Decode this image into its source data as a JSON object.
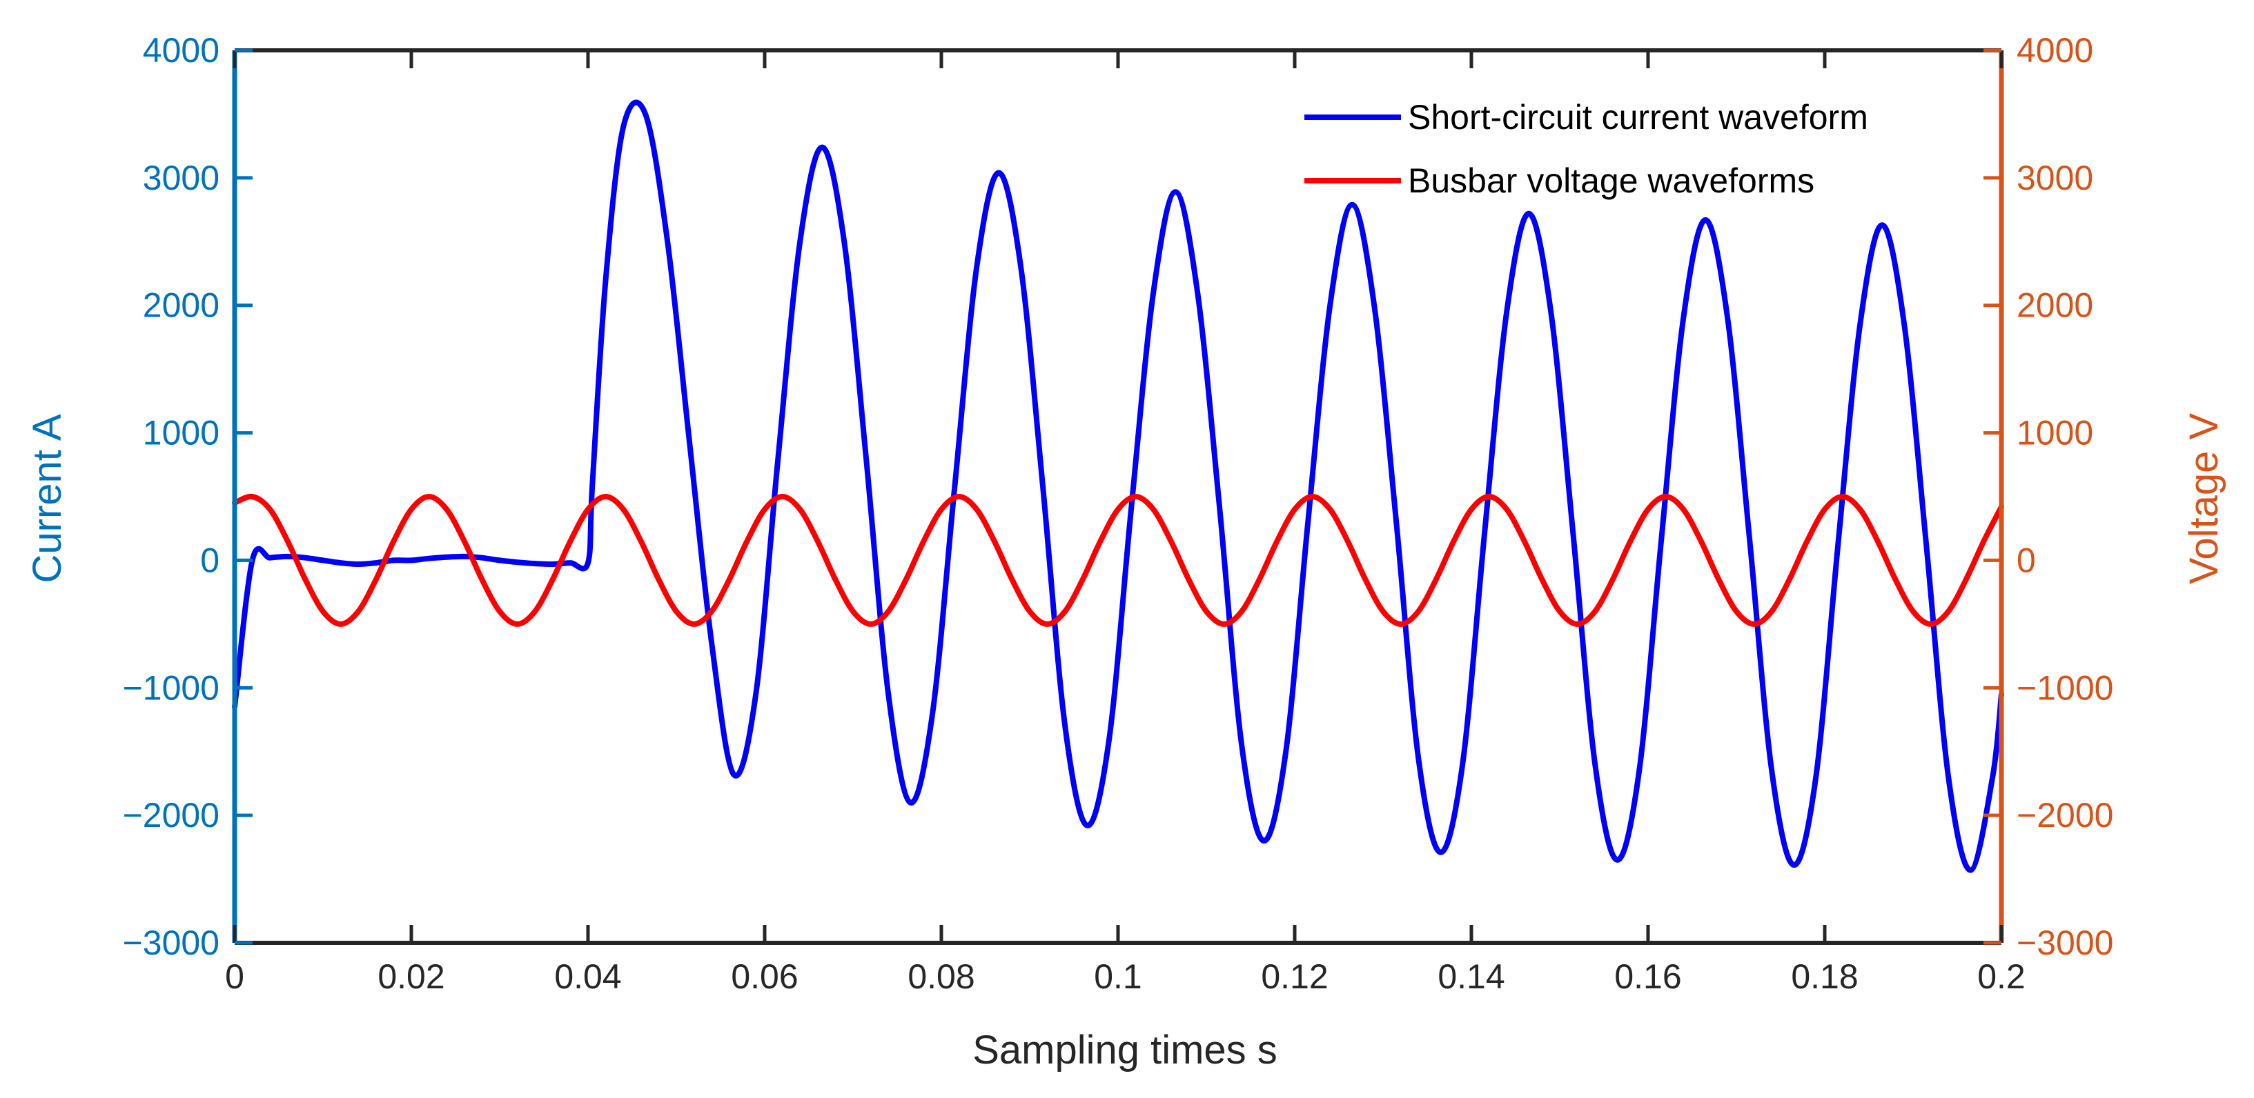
{
  "chart_data": {
    "type": "line",
    "title": "",
    "xlabel": "Sampling times s",
    "ylabel_left": "Current A",
    "ylabel_right": "Voltage V",
    "xlim": [
      0,
      0.2
    ],
    "ylim_left": [
      -3000,
      4000
    ],
    "ylim_right": [
      -3000,
      4000
    ],
    "x_ticks": [
      "0",
      "0.02",
      "0.04",
      "0.06",
      "0.08",
      "0.1",
      "0.12",
      "0.14",
      "0.16",
      "0.18",
      "0.2"
    ],
    "y_ticks_left": [
      "−3000",
      "−2000",
      "−1000",
      "0",
      "1000",
      "2000",
      "3000",
      "4000"
    ],
    "y_ticks_right": [
      "−3000",
      "−2000",
      "−1000",
      "0",
      "1000",
      "2000",
      "3000",
      "4000"
    ],
    "grid": false,
    "legend_placement": "top-right",
    "colors": {
      "current": "#0000ff",
      "voltage": "#ff0000",
      "left_axis": "#0072bd",
      "right_axis": "#d95319",
      "frame": "#262626",
      "text": "#262626"
    },
    "series": [
      {
        "name": "Short-circuit current waveform",
        "axis": "left",
        "color": "#0000ff",
        "x": [
          0,
          0.002,
          0.004,
          0.006,
          0.008,
          0.01,
          0.012,
          0.014,
          0.016,
          0.018,
          0.02,
          0.022,
          0.024,
          0.026,
          0.028,
          0.03,
          0.032,
          0.034,
          0.036,
          0.038,
          0.04,
          0.0405,
          0.042,
          0.044,
          0.0465,
          0.049,
          0.0515,
          0.054,
          0.0565,
          0.059,
          0.0615,
          0.064,
          0.0665,
          0.069,
          0.0715,
          0.074,
          0.0765,
          0.079,
          0.0815,
          0.084,
          0.0865,
          0.089,
          0.0915,
          0.094,
          0.0965,
          0.099,
          0.1015,
          0.104,
          0.1065,
          0.109,
          0.1115,
          0.114,
          0.1165,
          0.119,
          0.1215,
          0.124,
          0.1265,
          0.129,
          0.1315,
          0.134,
          0.1365,
          0.139,
          0.1415,
          0.144,
          0.1465,
          0.149,
          0.1515,
          0.154,
          0.1565,
          0.159,
          0.1615,
          0.164,
          0.1665,
          0.169,
          0.1715,
          0.174,
          0.1765,
          0.179,
          0.1815,
          0.184,
          0.1865,
          0.189,
          0.1915,
          0.194,
          0.1965,
          0.199,
          0.2
        ],
        "y": [
          -1150,
          0,
          20,
          30,
          20,
          0,
          -20,
          -30,
          -20,
          0,
          0,
          15,
          25,
          30,
          20,
          0,
          -15,
          -25,
          -30,
          -20,
          -20,
          600,
          2200,
          3400,
          3500,
          2500,
          920,
          -650,
          -1680,
          -1050,
          790,
          2500,
          3240,
          2500,
          790,
          -1050,
          -1900,
          -1200,
          570,
          2300,
          3040,
          2300,
          570,
          -1300,
          -2080,
          -1400,
          410,
          2100,
          2890,
          2100,
          410,
          -1450,
          -2200,
          -1500,
          300,
          2000,
          2790,
          2000,
          300,
          -1550,
          -2290,
          -1600,
          220,
          1950,
          2720,
          1950,
          220,
          -1600,
          -2350,
          -1650,
          160,
          1900,
          2670,
          1900,
          160,
          -1650,
          -2390,
          -1700,
          120,
          1850,
          2630,
          1850,
          120,
          -1700,
          -2430,
          -1700,
          -1050
        ]
      },
      {
        "name": "Busbar voltage waveforms",
        "axis": "right",
        "color": "#ff0000",
        "x": [
          0,
          0.002,
          0.004,
          0.006,
          0.008,
          0.01,
          0.012,
          0.014,
          0.016,
          0.018,
          0.02,
          0.022,
          0.024,
          0.026,
          0.028,
          0.03,
          0.032,
          0.034,
          0.036,
          0.038,
          0.04,
          0.042,
          0.044,
          0.046,
          0.048,
          0.05,
          0.052,
          0.054,
          0.056,
          0.058,
          0.06,
          0.062,
          0.064,
          0.066,
          0.068,
          0.07,
          0.072,
          0.074,
          0.076,
          0.078,
          0.08,
          0.082,
          0.084,
          0.086,
          0.088,
          0.09,
          0.092,
          0.094,
          0.096,
          0.098,
          0.1,
          0.102,
          0.104,
          0.106,
          0.108,
          0.11,
          0.112,
          0.114,
          0.116,
          0.118,
          0.12,
          0.122,
          0.124,
          0.126,
          0.128,
          0.13,
          0.132,
          0.134,
          0.136,
          0.138,
          0.14,
          0.142,
          0.144,
          0.146,
          0.148,
          0.15,
          0.152,
          0.154,
          0.156,
          0.158,
          0.16,
          0.162,
          0.164,
          0.166,
          0.168,
          0.17,
          0.172,
          0.174,
          0.176,
          0.178,
          0.18,
          0.182,
          0.184,
          0.186,
          0.188,
          0.19,
          0.192,
          0.194,
          0.196,
          0.198,
          0.2
        ],
        "y": [
          450,
          500,
          400,
          150,
          -150,
          -400,
          -500,
          -400,
          -150,
          150,
          400,
          500,
          400,
          150,
          -150,
          -400,
          -500,
          -400,
          -150,
          150,
          400,
          500,
          400,
          150,
          -150,
          -400,
          -500,
          -400,
          -150,
          150,
          400,
          500,
          400,
          150,
          -150,
          -400,
          -500,
          -400,
          -150,
          150,
          400,
          500,
          400,
          150,
          -150,
          -400,
          -500,
          -400,
          -150,
          150,
          400,
          500,
          400,
          150,
          -150,
          -400,
          -500,
          -400,
          -150,
          150,
          400,
          500,
          400,
          150,
          -150,
          -400,
          -500,
          -400,
          -150,
          150,
          400,
          500,
          400,
          150,
          -150,
          -400,
          -500,
          -400,
          -150,
          150,
          400,
          500,
          400,
          150,
          -150,
          -400,
          -500,
          -400,
          -150,
          150,
          400,
          500,
          400,
          150,
          -150,
          -400,
          -500,
          -400,
          -150,
          150,
          420
        ]
      }
    ]
  }
}
